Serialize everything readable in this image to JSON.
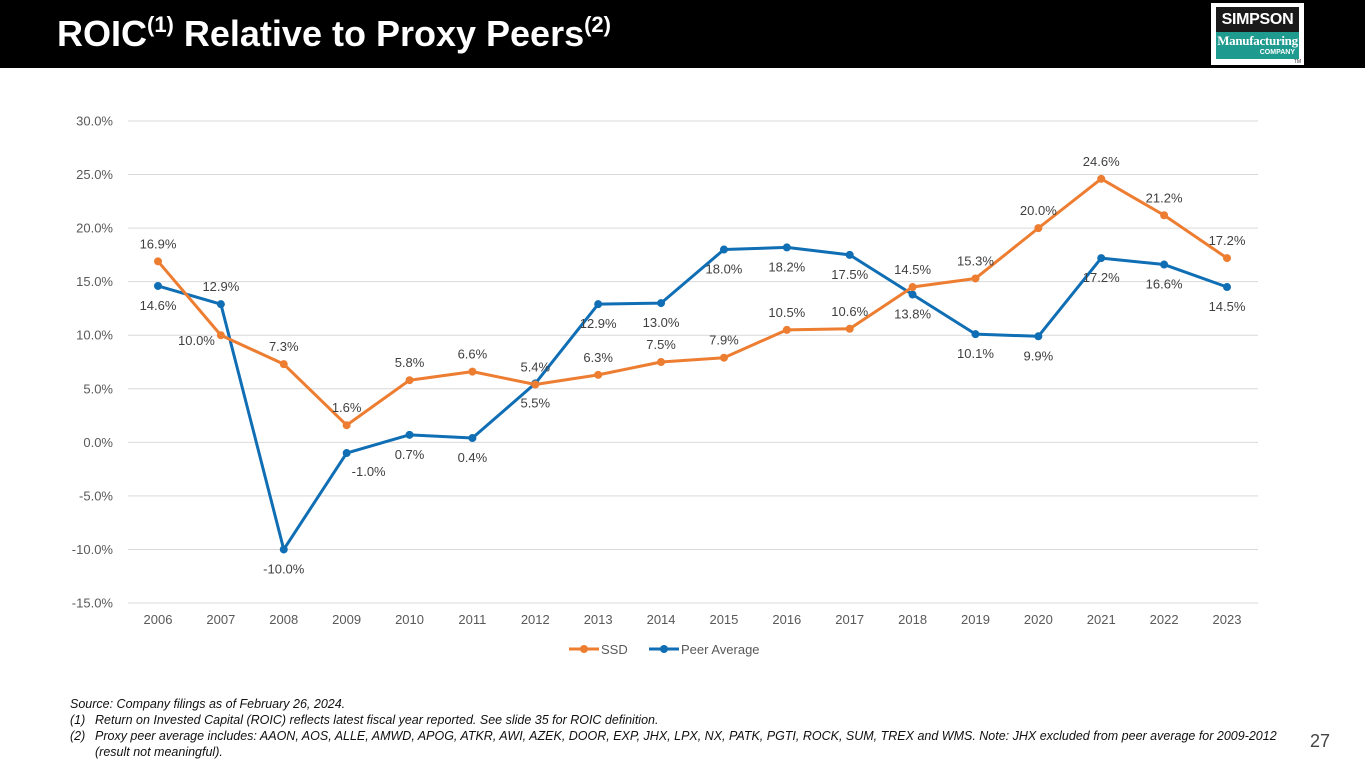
{
  "header": {
    "title_main": "ROIC",
    "title_sup1": "(1)",
    "title_rest": " Relative to Proxy Peers",
    "title_sup2": "(2)",
    "logo": {
      "line1": "SIMPSON",
      "line2": "Manufacturing",
      "line3": "COMPANY",
      "tm": "TM"
    }
  },
  "colors": {
    "ssd": "#ED7D31",
    "peer": "#0F6EB4",
    "grid": "#D9D9D9",
    "axis_text": "#595959",
    "label_text": "#404040"
  },
  "chart_data": {
    "type": "line",
    "title": "",
    "xlabel": "",
    "ylabel": "",
    "x": [
      "2006",
      "2007",
      "2008",
      "2009",
      "2010",
      "2011",
      "2012",
      "2013",
      "2014",
      "2015",
      "2016",
      "2017",
      "2018",
      "2019",
      "2020",
      "2021",
      "2022",
      "2023"
    ],
    "ylim": [
      -15,
      30
    ],
    "yticks": [
      -15,
      -10,
      -5,
      0,
      5,
      10,
      15,
      20,
      25,
      30
    ],
    "ytick_labels": [
      "-15.0%",
      "-10.0%",
      "-5.0%",
      "0.0%",
      "5.0%",
      "10.0%",
      "15.0%",
      "20.0%",
      "25.0%",
      "30.0%"
    ],
    "grid": true,
    "legend_position": "bottom",
    "series": [
      {
        "name": "SSD",
        "values": [
          16.9,
          10.0,
          7.3,
          1.6,
          5.8,
          6.6,
          5.4,
          6.3,
          7.5,
          7.9,
          10.5,
          10.6,
          14.5,
          15.3,
          20.0,
          24.6,
          21.2,
          17.2
        ],
        "labels": [
          "16.9%",
          "10.0%",
          "7.3%",
          "1.6%",
          "5.8%",
          "6.6%",
          "5.4%",
          "6.3%",
          "7.5%",
          "7.9%",
          "10.5%",
          "10.6%",
          "14.5%",
          "15.3%",
          "20.0%",
          "24.6%",
          "21.2%",
          "17.2%"
        ],
        "label_side": [
          "above",
          "left",
          "above",
          "above",
          "above",
          "above",
          "above",
          "above",
          "above",
          "above",
          "above",
          "above",
          "above",
          "above",
          "above",
          "above",
          "above",
          "above"
        ]
      },
      {
        "name": "Peer Average",
        "values": [
          14.6,
          12.9,
          -10.0,
          -1.0,
          0.7,
          0.4,
          5.5,
          12.9,
          13.0,
          18.0,
          18.2,
          17.5,
          13.8,
          10.1,
          9.9,
          17.2,
          16.6,
          14.5
        ],
        "labels": [
          "14.6%",
          "12.9%",
          "-10.0%",
          "-1.0%",
          "0.7%",
          "0.4%",
          "5.5%",
          "12.9%",
          "13.0%",
          "18.0%",
          "18.2%",
          "17.5%",
          "13.8%",
          "10.1%",
          "9.9%",
          "17.2%",
          "16.6%",
          "14.5%"
        ],
        "label_side": [
          "below",
          "above",
          "below",
          "below-right",
          "below",
          "below",
          "below",
          "below",
          "below",
          "below",
          "below",
          "below",
          "below",
          "below",
          "below",
          "below",
          "below",
          "below"
        ]
      }
    ]
  },
  "footnotes": {
    "source": "Source: Company filings as of February 26, 2024.",
    "notes": [
      {
        "num": "(1)",
        "text": "Return on Invested Capital (ROIC) reflects latest fiscal year reported. See slide 35 for ROIC definition."
      },
      {
        "num": "(2)",
        "text": "Proxy peer average includes: AAON, AOS, ALLE, AMWD, APOG, ATKR, AWI, AZEK, DOOR, EXP, JHX, LPX, NX, PATK, PGTI, ROCK, SUM, TREX and WMS. Note: JHX excluded from peer average for 2009-2012 (result not meaningful)."
      }
    ]
  },
  "page_number": "27"
}
